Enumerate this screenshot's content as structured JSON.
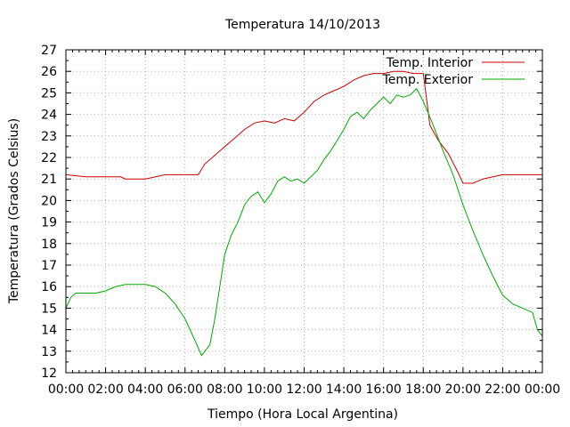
{
  "chart_data": {
    "type": "line",
    "title": "Temperatura 14/10/2013",
    "xlabel": "Tiempo (Hora Local Argentina)",
    "ylabel": "Temperatura (Grados Celsius)",
    "xlim": [
      "00:00",
      "24:00"
    ],
    "ylim": [
      12,
      27
    ],
    "x_tick_labels": [
      "00:00",
      "02:00",
      "04:00",
      "06:00",
      "08:00",
      "10:00",
      "12:00",
      "14:00",
      "16:00",
      "18:00",
      "20:00",
      "22:00",
      "00:00"
    ],
    "y_tick_labels": [
      "12",
      "13",
      "14",
      "15",
      "16",
      "17",
      "18",
      "19",
      "20",
      "21",
      "22",
      "23",
      "24",
      "25",
      "26",
      "27"
    ],
    "grid": true,
    "legend_position": "top-right",
    "series": [
      {
        "name": "Temp. Interior",
        "color": "#cc0000",
        "points": [
          [
            "00:00",
            21.2
          ],
          [
            "01:00",
            21.1
          ],
          [
            "02:00",
            21.1
          ],
          [
            "02:45",
            21.1
          ],
          [
            "03:00",
            21.0
          ],
          [
            "03:30",
            21.0
          ],
          [
            "04:00",
            21.0
          ],
          [
            "05:00",
            21.2
          ],
          [
            "06:00",
            21.2
          ],
          [
            "06:40",
            21.2
          ],
          [
            "07:00",
            21.7
          ],
          [
            "07:30",
            22.1
          ],
          [
            "08:00",
            22.5
          ],
          [
            "08:30",
            22.9
          ],
          [
            "09:00",
            23.3
          ],
          [
            "09:30",
            23.6
          ],
          [
            "10:00",
            23.7
          ],
          [
            "10:30",
            23.6
          ],
          [
            "11:00",
            23.8
          ],
          [
            "11:30",
            23.7
          ],
          [
            "12:00",
            24.1
          ],
          [
            "12:30",
            24.6
          ],
          [
            "13:00",
            24.9
          ],
          [
            "13:30",
            25.1
          ],
          [
            "14:00",
            25.3
          ],
          [
            "14:30",
            25.6
          ],
          [
            "15:00",
            25.8
          ],
          [
            "15:30",
            25.9
          ],
          [
            "16:00",
            25.9
          ],
          [
            "16:30",
            26.0
          ],
          [
            "17:00",
            26.0
          ],
          [
            "17:30",
            25.9
          ],
          [
            "18:00",
            25.9
          ],
          [
            "18:20",
            23.5
          ],
          [
            "18:45",
            22.8
          ],
          [
            "19:15",
            22.2
          ],
          [
            "19:45",
            21.3
          ],
          [
            "20:00",
            20.8
          ],
          [
            "20:30",
            20.8
          ],
          [
            "21:00",
            21.0
          ],
          [
            "22:00",
            21.2
          ],
          [
            "23:00",
            21.2
          ],
          [
            "24:00",
            21.2
          ]
        ]
      },
      {
        "name": "Temp. Exterior",
        "color": "#00aa00",
        "points": [
          [
            "00:00",
            15.0
          ],
          [
            "00:15",
            15.5
          ],
          [
            "00:30",
            15.7
          ],
          [
            "01:00",
            15.7
          ],
          [
            "01:30",
            15.7
          ],
          [
            "02:00",
            15.8
          ],
          [
            "02:30",
            16.0
          ],
          [
            "03:00",
            16.1
          ],
          [
            "03:30",
            16.1
          ],
          [
            "04:00",
            16.1
          ],
          [
            "04:30",
            16.0
          ],
          [
            "05:00",
            15.7
          ],
          [
            "05:30",
            15.2
          ],
          [
            "06:00",
            14.5
          ],
          [
            "06:30",
            13.5
          ],
          [
            "06:50",
            12.8
          ],
          [
            "07:15",
            13.3
          ],
          [
            "07:30",
            14.5
          ],
          [
            "07:45",
            16.0
          ],
          [
            "08:00",
            17.5
          ],
          [
            "08:20",
            18.4
          ],
          [
            "08:40",
            19.0
          ],
          [
            "09:00",
            19.8
          ],
          [
            "09:20",
            20.2
          ],
          [
            "09:40",
            20.4
          ],
          [
            "10:00",
            19.9
          ],
          [
            "10:20",
            20.3
          ],
          [
            "10:40",
            20.9
          ],
          [
            "11:00",
            21.1
          ],
          [
            "11:20",
            20.9
          ],
          [
            "11:40",
            21.0
          ],
          [
            "12:00",
            20.8
          ],
          [
            "12:20",
            21.1
          ],
          [
            "12:40",
            21.4
          ],
          [
            "13:00",
            21.9
          ],
          [
            "13:20",
            22.3
          ],
          [
            "13:40",
            22.8
          ],
          [
            "14:00",
            23.3
          ],
          [
            "14:20",
            23.9
          ],
          [
            "14:40",
            24.1
          ],
          [
            "15:00",
            23.8
          ],
          [
            "15:20",
            24.2
          ],
          [
            "15:40",
            24.5
          ],
          [
            "16:00",
            24.8
          ],
          [
            "16:20",
            24.5
          ],
          [
            "16:40",
            24.9
          ],
          [
            "17:00",
            24.8
          ],
          [
            "17:20",
            24.9
          ],
          [
            "17:40",
            25.2
          ],
          [
            "18:00",
            24.6
          ],
          [
            "18:30",
            23.5
          ],
          [
            "19:00",
            22.3
          ],
          [
            "19:30",
            21.2
          ],
          [
            "20:00",
            19.8
          ],
          [
            "20:30",
            18.6
          ],
          [
            "21:00",
            17.5
          ],
          [
            "21:30",
            16.5
          ],
          [
            "22:00",
            15.6
          ],
          [
            "22:30",
            15.2
          ],
          [
            "23:00",
            15.0
          ],
          [
            "23:30",
            14.8
          ],
          [
            "23:45",
            14.0
          ],
          [
            "24:00",
            13.7
          ]
        ]
      }
    ]
  }
}
